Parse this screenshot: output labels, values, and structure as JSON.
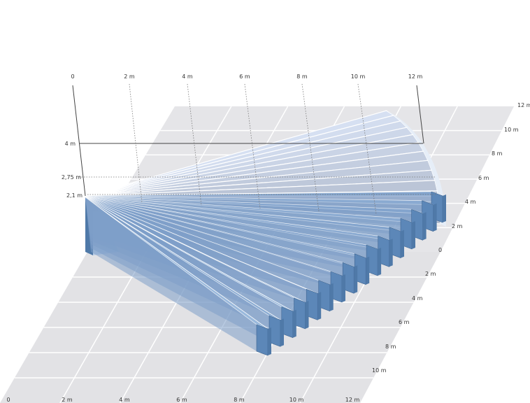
{
  "top_axis": {
    "labels": [
      "0",
      "2 m",
      "4 m",
      "6 m",
      "8 m",
      "10 m",
      "12 m"
    ]
  },
  "height_axis": {
    "labels": [
      "4 m",
      "2,75 m",
      "2,1 m"
    ]
  },
  "right_axis": {
    "upper_labels": [
      "12 m",
      "10 m",
      "8 m",
      "6 m",
      "4 m",
      "2 m",
      "0"
    ],
    "lower_labels": [
      "2 m",
      "4 m",
      "6 m",
      "8 m",
      "10 m"
    ]
  },
  "bottom_axis": {
    "labels": [
      "0",
      "2 m",
      "4 m",
      "6 m",
      "8 m",
      "10 m",
      "12 m"
    ]
  },
  "colors": {
    "floor": "#e3e3e6",
    "floor_grid": "#ffffff",
    "beam_top": "#8fb2d8",
    "beam_side": "#4f79a8",
    "beam_face": "#5c87b8",
    "fan_light": "#e6eef8",
    "axis": "#444444"
  }
}
